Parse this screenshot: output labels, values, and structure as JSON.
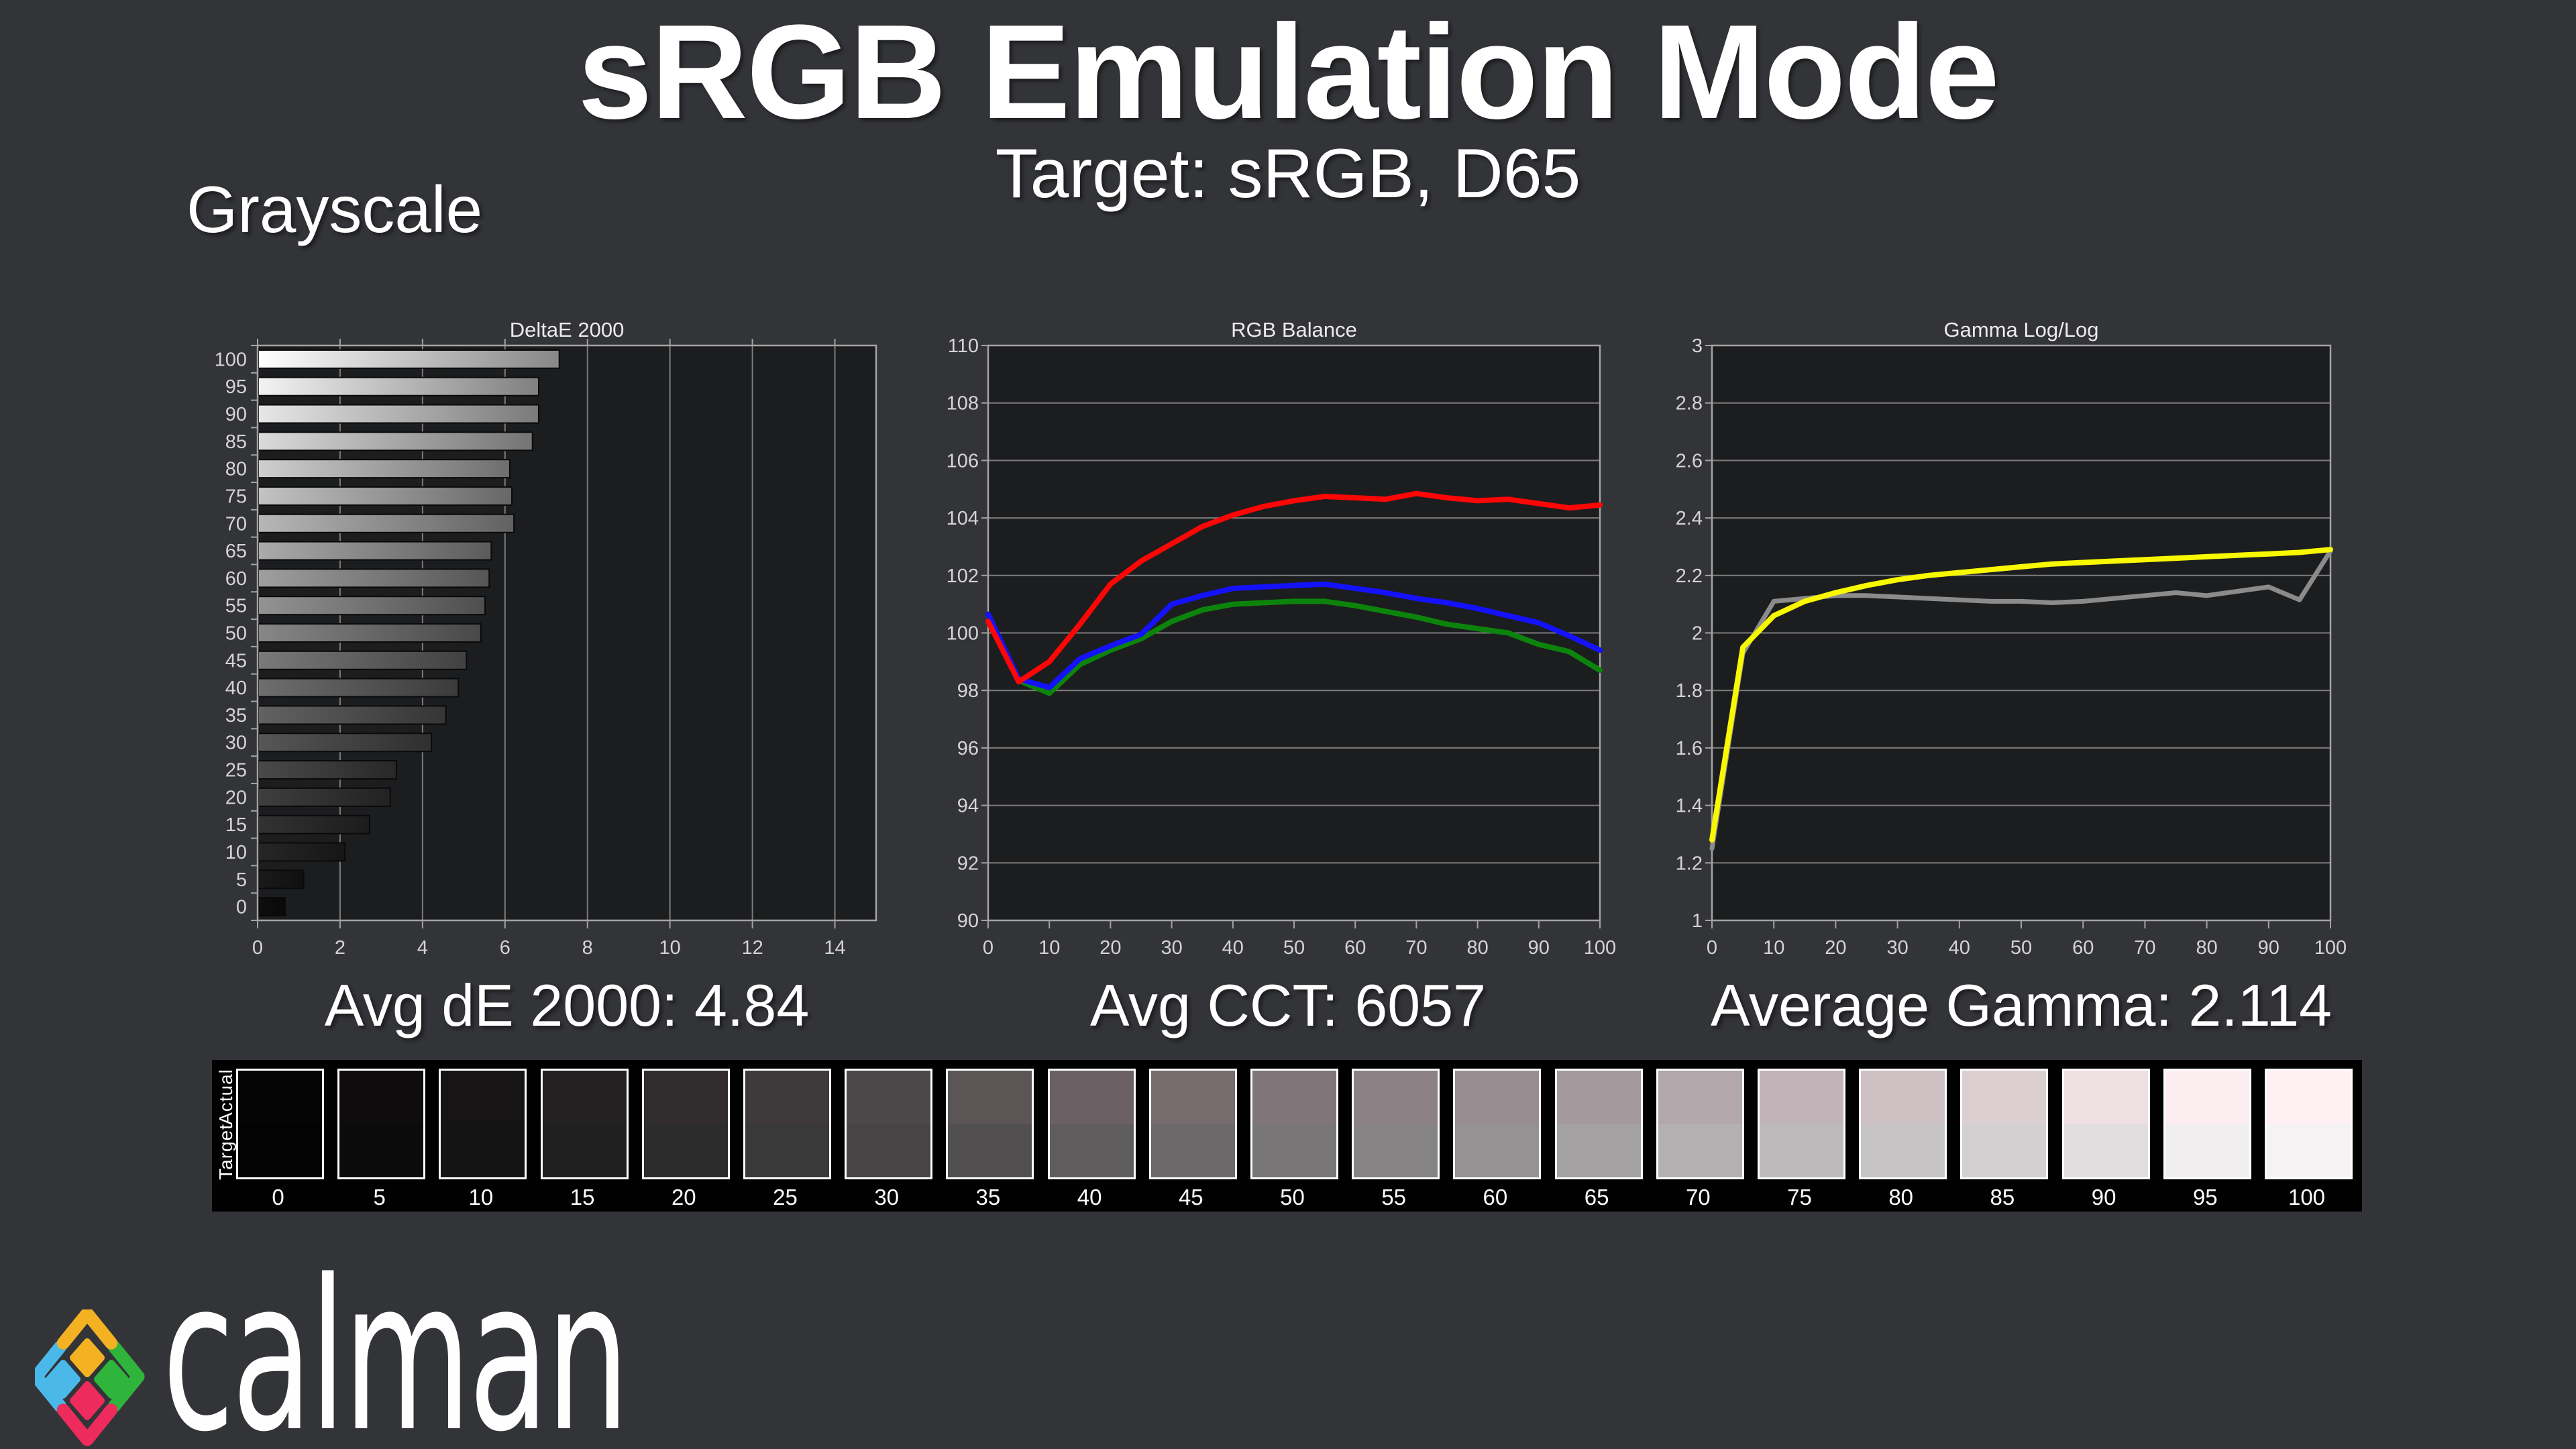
{
  "page": {
    "background": "#333438"
  },
  "header": {
    "title": "sRGB Emulation Mode",
    "subtitle": "Target: sRGB, D65",
    "section_label": "Grayscale"
  },
  "summary": {
    "avg_de": "Avg dE 2000: 4.84",
    "avg_cct": "Avg CCT: 6057",
    "avg_gamma": "Average Gamma: 2.114"
  },
  "chart_data": [
    {
      "type": "bar",
      "orientation": "horizontal",
      "title": "DeltaE 2000",
      "categories": [
        "100",
        "95",
        "90",
        "85",
        "80",
        "75",
        "70",
        "65",
        "60",
        "55",
        "50",
        "45",
        "40",
        "35",
        "30",
        "25",
        "20",
        "15",
        "10",
        "5",
        "0"
      ],
      "values": [
        7.3,
        6.8,
        6.8,
        6.65,
        6.1,
        6.15,
        6.2,
        5.65,
        5.6,
        5.5,
        5.4,
        5.05,
        4.85,
        4.55,
        4.2,
        3.35,
        3.2,
        2.7,
        2.1,
        1.1,
        0.65
      ],
      "xlim": [
        0,
        15
      ],
      "xticks": [
        0,
        2,
        4,
        6,
        8,
        10,
        12,
        14
      ],
      "xtick_labels": [
        "0",
        "2",
        "4",
        "6",
        "8",
        "10",
        "12",
        "14"
      ],
      "grid": "vertical",
      "plot_bg": "#1c1d1f",
      "gridline_color": "#7c7c7c"
    },
    {
      "type": "line",
      "title": "RGB Balance",
      "x": [
        0,
        5,
        10,
        15,
        20,
        25,
        30,
        35,
        40,
        45,
        50,
        55,
        60,
        65,
        70,
        75,
        80,
        85,
        90,
        95,
        100
      ],
      "xticks": [
        0,
        10,
        20,
        30,
        40,
        50,
        60,
        70,
        80,
        90,
        100
      ],
      "xtick_labels": [
        "0",
        "10",
        "20",
        "30",
        "40",
        "50",
        "60",
        "70",
        "80",
        "90",
        "100"
      ],
      "ylim": [
        90,
        110
      ],
      "yticks": [
        110,
        108,
        106,
        104,
        102,
        100,
        98,
        96,
        94,
        92,
        90
      ],
      "ytick_labels": [
        "110",
        "108",
        "106",
        "104",
        "102",
        "100",
        "98",
        "96",
        "94",
        "92",
        "90"
      ],
      "grid": "horizontal",
      "plot_bg": "#1c1d1f",
      "gridline_color": "#7c7c7c",
      "series": [
        {
          "name": "green",
          "color": "#0c840c",
          "width": 8,
          "values": [
            100.65,
            98.35,
            97.9,
            98.9,
            99.4,
            99.8,
            100.4,
            100.8,
            101.0,
            101.05,
            101.1,
            101.1,
            100.95,
            100.75,
            100.55,
            100.3,
            100.15,
            100.0,
            99.6,
            99.35,
            98.7
          ]
        },
        {
          "name": "blue",
          "color": "#1412fb",
          "width": 8,
          "values": [
            100.65,
            98.4,
            98.1,
            99.1,
            99.55,
            99.95,
            101.0,
            101.3,
            101.55,
            101.6,
            101.65,
            101.7,
            101.55,
            101.4,
            101.2,
            101.05,
            100.85,
            100.6,
            100.35,
            99.9,
            99.4
          ]
        },
        {
          "name": "red",
          "color": "#fc0606",
          "width": 8,
          "values": [
            100.4,
            98.3,
            99.0,
            100.3,
            101.7,
            102.5,
            103.1,
            103.7,
            104.1,
            104.4,
            104.6,
            104.75,
            104.7,
            104.65,
            104.85,
            104.7,
            104.6,
            104.65,
            104.5,
            104.35,
            104.45
          ]
        }
      ]
    },
    {
      "type": "line",
      "title": "Gamma Log/Log",
      "x": [
        0,
        5,
        10,
        15,
        20,
        25,
        30,
        35,
        40,
        45,
        50,
        55,
        60,
        65,
        70,
        75,
        80,
        85,
        90,
        95,
        100
      ],
      "xticks": [
        0,
        10,
        20,
        30,
        40,
        50,
        60,
        70,
        80,
        90,
        100
      ],
      "xtick_labels": [
        "0",
        "10",
        "20",
        "30",
        "40",
        "50",
        "60",
        "70",
        "80",
        "90",
        "100"
      ],
      "ylim": [
        1,
        3
      ],
      "yticks": [
        3,
        2.8,
        2.6,
        2.4,
        2.2,
        2,
        1.8,
        1.6,
        1.4,
        1.2,
        1
      ],
      "ytick_labels": [
        "3",
        "2.8",
        "2.6",
        "2.4",
        "2.2",
        "2",
        "1.8",
        "1.6",
        "1.4",
        "1.2",
        "1"
      ],
      "grid": "horizontal",
      "plot_bg": "#1c1d1f",
      "gridline_color": "#7c7c7c",
      "series": [
        {
          "name": "gamma-gray",
          "color": "#8b8b8b",
          "width": 7,
          "values": [
            1.25,
            1.93,
            2.11,
            2.12,
            2.13,
            2.13,
            2.125,
            2.12,
            2.115,
            2.11,
            2.11,
            2.105,
            2.11,
            2.12,
            2.13,
            2.14,
            2.13,
            2.145,
            2.16,
            2.115,
            2.285
          ]
        },
        {
          "name": "gamma-yellow",
          "color": "#f8f800",
          "width": 8,
          "values": [
            1.28,
            1.95,
            2.06,
            2.11,
            2.14,
            2.165,
            2.185,
            2.2,
            2.21,
            2.22,
            2.23,
            2.24,
            2.245,
            2.25,
            2.255,
            2.26,
            2.265,
            2.27,
            2.275,
            2.28,
            2.29
          ]
        }
      ]
    }
  ],
  "grayscale_strip": {
    "actual_label": "Actual",
    "target_label": "Target",
    "levels": [
      "0",
      "5",
      "10",
      "15",
      "20",
      "25",
      "30",
      "35",
      "40",
      "45",
      "50",
      "55",
      "60",
      "65",
      "70",
      "75",
      "80",
      "85",
      "90",
      "95",
      "100"
    ],
    "actual_colors": [
      "#060505",
      "#0e0c0d",
      "#161415",
      "#242122",
      "#312d2e",
      "#3e3a3b",
      "#4c4748",
      "#5b5556",
      "#6b6164",
      "#766c6e",
      "#80767a",
      "#8c8286",
      "#988e92",
      "#a49a9e",
      "#b2a8ac",
      "#c0b4b8",
      "#cdc1c4",
      "#dccfd2",
      "#eddfe2",
      "#fcedf0",
      "#fff0f3"
    ],
    "target_colors": [
      "#030303",
      "#0b0b0b",
      "#141414",
      "#202020",
      "#2c2c2c",
      "#393939",
      "#464444",
      "#524f50",
      "#5f5d5e",
      "#6b696a",
      "#787677",
      "#858384",
      "#949292",
      "#a3a1a1",
      "#b2b0b0",
      "#bcbaba",
      "#c6c4c4",
      "#d2d0d0",
      "#e0dede",
      "#f0eeee",
      "#f4f2f2"
    ]
  },
  "logo": {
    "text": "calman",
    "icon_colors": {
      "top": "#f4b223",
      "left": "#4ab8e8",
      "right": "#2fb43c",
      "bottom": "#ed2b5c"
    }
  }
}
